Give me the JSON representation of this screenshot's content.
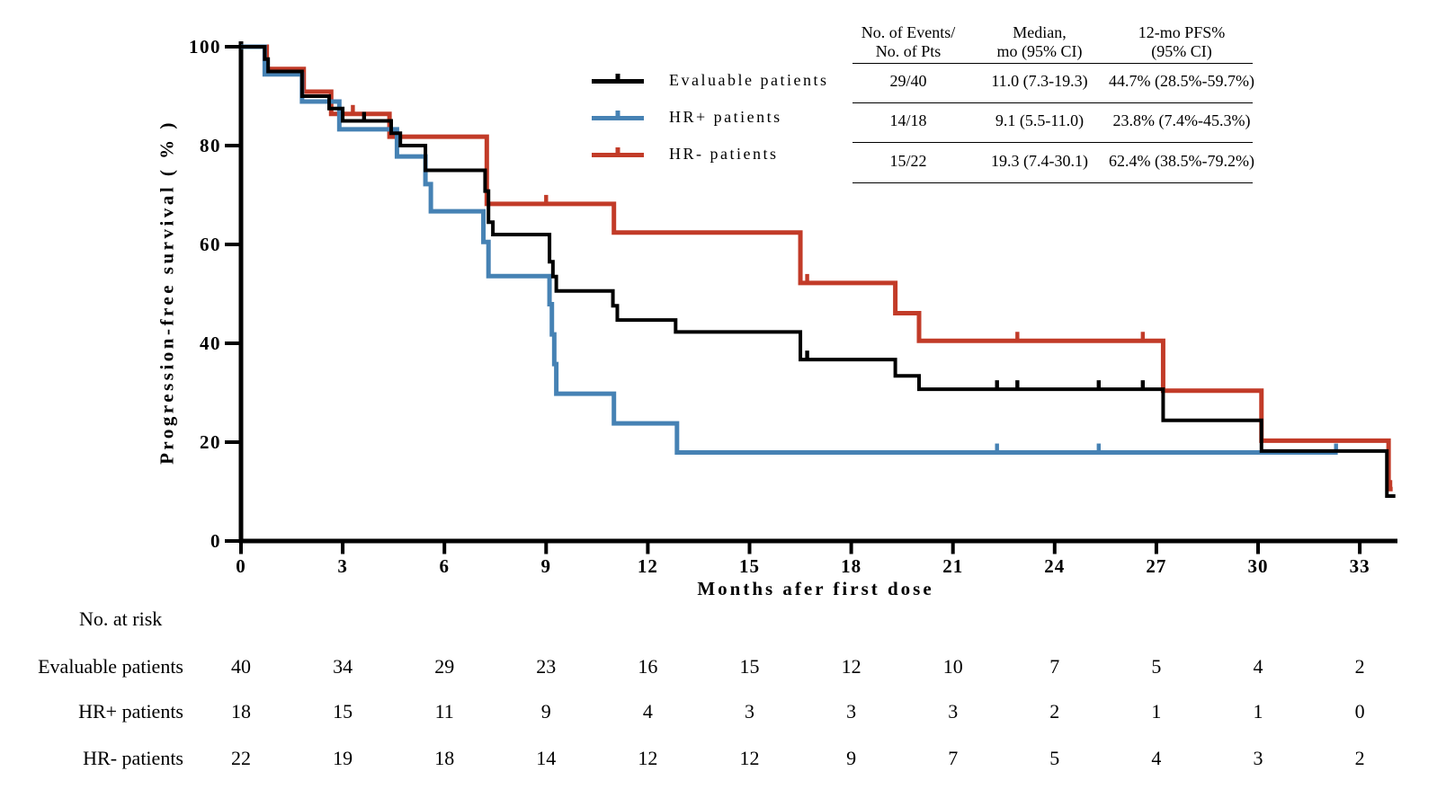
{
  "chart_data": {
    "type": "line",
    "subtype": "kaplan-meier-step",
    "title": "",
    "xlabel": "Months afer first dose",
    "ylabel": "Progression-free survival ( % )",
    "xlim": [
      0,
      34.5
    ],
    "ylim": [
      0,
      100
    ],
    "xticks": [
      0,
      3,
      6,
      9,
      12,
      15,
      18,
      21,
      24,
      27,
      30,
      33
    ],
    "yticks": [
      0,
      20,
      40,
      60,
      80,
      100
    ],
    "grid": false,
    "legend_position": "upper-center-left",
    "series": [
      {
        "name": "Evaluable patients",
        "color": "#000000",
        "steps": [
          [
            0,
            100
          ],
          [
            0.7,
            97.5
          ],
          [
            0.8,
            95
          ],
          [
            1.8,
            90
          ],
          [
            2.6,
            87.5
          ],
          [
            3,
            85
          ],
          [
            4.43,
            82.5
          ],
          [
            4.7,
            80
          ],
          [
            5.44,
            75
          ],
          [
            7.2,
            70.8
          ],
          [
            7.3,
            64.5
          ],
          [
            7.43,
            62
          ],
          [
            9.1,
            56.5
          ],
          [
            9.2,
            53.5
          ],
          [
            9.3,
            50.6
          ],
          [
            10.97,
            47.6
          ],
          [
            11.1,
            44.7
          ],
          [
            12.82,
            42.3
          ],
          [
            16.5,
            36.7
          ],
          [
            19.3,
            33.4
          ],
          [
            20,
            30.7
          ],
          [
            27.2,
            24.4
          ],
          [
            30.1,
            18.2
          ],
          [
            33.8,
            9.1
          ],
          [
            34.05,
            9.1
          ]
        ],
        "censor_marks": [
          [
            3.63,
            85
          ],
          [
            16.7,
            36.7
          ],
          [
            22.3,
            30.7
          ],
          [
            22.9,
            30.7
          ],
          [
            25.3,
            30.7
          ],
          [
            26.6,
            30.7
          ]
        ]
      },
      {
        "name": "HR+ patients",
        "color": "#4682b4",
        "steps": [
          [
            0,
            100
          ],
          [
            0.7,
            94.4
          ],
          [
            1.8,
            88.9
          ],
          [
            2.9,
            83.3
          ],
          [
            4.6,
            77.8
          ],
          [
            5.44,
            72.2
          ],
          [
            5.6,
            66.7
          ],
          [
            7.15,
            60.5
          ],
          [
            7.3,
            53.6
          ],
          [
            9.1,
            47.9
          ],
          [
            9.17,
            41.8
          ],
          [
            9.24,
            35.8
          ],
          [
            9.3,
            29.8
          ],
          [
            11,
            23.8
          ],
          [
            12.86,
            17.9
          ],
          [
            32.35,
            17.9
          ]
        ],
        "censor_marks": [
          [
            22.3,
            17.9
          ],
          [
            25.3,
            17.9
          ],
          [
            32.3,
            17.9
          ]
        ]
      },
      {
        "name": "HR- patients",
        "color": "#c23b28",
        "steps": [
          [
            0,
            100
          ],
          [
            0.76,
            95.5
          ],
          [
            1.85,
            90.9
          ],
          [
            2.66,
            86.4
          ],
          [
            4.38,
            81.8
          ],
          [
            7.25,
            68.2
          ],
          [
            11,
            62.4
          ],
          [
            16.5,
            52.2
          ],
          [
            19.3,
            46.1
          ],
          [
            20,
            40.5
          ],
          [
            27.2,
            30.4
          ],
          [
            30.1,
            20.3
          ],
          [
            33.85,
            10.5
          ],
          [
            33.97,
            10.5
          ]
        ],
        "censor_marks": [
          [
            3.3,
            86.4
          ],
          [
            9,
            68.2
          ],
          [
            16.7,
            52.2
          ],
          [
            22.9,
            40.5
          ],
          [
            26.6,
            40.5
          ],
          [
            33.9,
            10.5
          ]
        ]
      }
    ]
  },
  "legend": {
    "items": [
      {
        "label": "Evaluable patients",
        "color": "#000000"
      },
      {
        "label": "HR+ patients",
        "color": "#4682b4"
      },
      {
        "label": "HR- patients",
        "color": "#c23b28"
      }
    ]
  },
  "stats_table": {
    "headers": [
      [
        "No. of Events/",
        "No. of Pts"
      ],
      [
        "Median,",
        "mo (95% CI)"
      ],
      [
        "12-mo PFS%",
        "(95% CI)"
      ]
    ],
    "rows": [
      [
        "29/40",
        "11.0 (7.3-19.3)",
        "44.7% (28.5%-59.7%)"
      ],
      [
        "14/18",
        "9.1 (5.5-11.0)",
        "23.8% (7.4%-45.3%)"
      ],
      [
        "15/22",
        "19.3 (7.4-30.1)",
        "62.4% (38.5%-79.2%)"
      ]
    ]
  },
  "at_risk": {
    "title": "No. at risk",
    "months": [
      0,
      3,
      6,
      9,
      12,
      15,
      18,
      21,
      24,
      27,
      30,
      33
    ],
    "rows": [
      {
        "label": "Evaluable patients",
        "values": [
          40,
          34,
          29,
          23,
          16,
          15,
          12,
          10,
          7,
          5,
          4,
          2
        ]
      },
      {
        "label": "HR+ patients",
        "values": [
          18,
          15,
          11,
          9,
          4,
          3,
          3,
          3,
          2,
          1,
          1,
          0
        ]
      },
      {
        "label": "HR- patients",
        "values": [
          22,
          19,
          18,
          14,
          12,
          12,
          9,
          7,
          5,
          4,
          3,
          2
        ]
      }
    ]
  }
}
